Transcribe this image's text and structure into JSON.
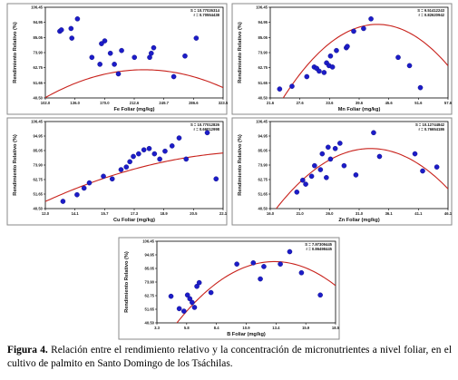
{
  "caption": {
    "label": "Figura 4.",
    "text": "Relación entre el rendimiento relativo y la concentración de micronutrientes a nivel foliar, en el cultivo de palmito en Santo Domingo de los Tsáchilas."
  },
  "chart_data": [
    {
      "type": "scatter",
      "xlabel": "Fe Foliar (mg/kg)",
      "ylabel": "Rendimiento Relativo (%)",
      "xticks": [
        "102.0",
        "136.0",
        "170.0",
        "212.6",
        "249.7",
        "286.6",
        "323.5"
      ],
      "yticks": [
        "40.50",
        "51.65",
        "62.75",
        "73.90",
        "85.05",
        "94.95",
        "106.45"
      ],
      "xlim": [
        102.0,
        323.5
      ],
      "ylim": [
        40.5,
        106.45
      ],
      "stats": [
        "S = 10.77026314",
        "r = 0.70554438"
      ],
      "points": [
        [
          120,
          89
        ],
        [
          122,
          90
        ],
        [
          134,
          91
        ],
        [
          135,
          84
        ],
        [
          142,
          98
        ],
        [
          160,
          70
        ],
        [
          170,
          65
        ],
        [
          172,
          80
        ],
        [
          176,
          82
        ],
        [
          183,
          73
        ],
        [
          188,
          65
        ],
        [
          193,
          58
        ],
        [
          197,
          75
        ],
        [
          213,
          70
        ],
        [
          232,
          70
        ],
        [
          234,
          73
        ],
        [
          237,
          77
        ],
        [
          262,
          56
        ],
        [
          276,
          71
        ],
        [
          290,
          84
        ]
      ],
      "curve": {
        "kind": "quadratic",
        "vertex_x": 225,
        "vertex_y": 61,
        "a": 0.00134
      }
    },
    {
      "type": "scatter",
      "xlabel": "Mn Foliar (mg/kg)",
      "ylabel": "Rendimiento Relativo (%)",
      "xticks": [
        "21.6",
        "27.6",
        "33.6",
        "39.6",
        "45.6",
        "51.6",
        "57.6"
      ],
      "yticks": [
        "40.50",
        "51.65",
        "62.75",
        "73.90",
        "85.05",
        "94.95",
        "106.45"
      ],
      "xlim": [
        21.6,
        57.6
      ],
      "ylim": [
        40.5,
        106.45
      ],
      "stats": [
        "S = 9.51412243",
        "r = 0.82620942"
      ],
      "points": [
        [
          23.5,
          47
        ],
        [
          26.0,
          49
        ],
        [
          29.0,
          56
        ],
        [
          30.5,
          63
        ],
        [
          31.0,
          62
        ],
        [
          31.5,
          60
        ],
        [
          32.5,
          59
        ],
        [
          33.0,
          66
        ],
        [
          33.5,
          64
        ],
        [
          33.8,
          71
        ],
        [
          34.2,
          63
        ],
        [
          35.0,
          75
        ],
        [
          37.0,
          77
        ],
        [
          37.2,
          78
        ],
        [
          38.5,
          89
        ],
        [
          40.5,
          91
        ],
        [
          42.0,
          98
        ],
        [
          47.5,
          70
        ],
        [
          49.8,
          64
        ],
        [
          52.0,
          48
        ]
      ],
      "curve": {
        "kind": "quadratic",
        "vertex_x": 43.3,
        "vertex_y": 94,
        "a": 0.147
      }
    },
    {
      "type": "scatter",
      "xlabel": "Cu Foliar (mg/kg)",
      "ylabel": "Rendimiento Relativo (%)",
      "xticks": [
        "12.0",
        "14.1",
        "15.7",
        "17.3",
        "18.9",
        "20.5",
        "22.1"
      ],
      "yticks": [
        "40.50",
        "51.65",
        "62.75",
        "73.90",
        "85.05",
        "94.95",
        "106.45"
      ],
      "xlim": [
        12.0,
        22.1
      ],
      "ylim": [
        40.5,
        106.45
      ],
      "stats": [
        "S = 10.77012826",
        "r = 0.66012998"
      ],
      "points": [
        [
          13.0,
          46
        ],
        [
          13.8,
          51
        ],
        [
          14.2,
          56
        ],
        [
          14.5,
          60
        ],
        [
          15.3,
          65
        ],
        [
          15.8,
          63
        ],
        [
          16.3,
          70
        ],
        [
          16.6,
          72
        ],
        [
          16.8,
          76
        ],
        [
          17.0,
          80
        ],
        [
          17.3,
          82
        ],
        [
          17.6,
          85
        ],
        [
          17.9,
          86
        ],
        [
          18.2,
          82
        ],
        [
          18.5,
          78
        ],
        [
          18.8,
          84
        ],
        [
          19.2,
          88
        ],
        [
          19.6,
          94
        ],
        [
          20.0,
          78
        ],
        [
          21.2,
          98
        ],
        [
          21.7,
          63
        ]
      ],
      "curve": {
        "kind": "quadratic",
        "vertex_x": 24.5,
        "vertex_y": 84,
        "a": 0.244
      }
    },
    {
      "type": "scatter",
      "xlabel": "Zn Foliar (mg/kg)",
      "ylabel": "Rendimiento Relativo (%)",
      "xticks": [
        "16.0",
        "21.0",
        "26.0",
        "31.0",
        "36.1",
        "41.1",
        "46.1"
      ],
      "yticks": [
        "40.50",
        "51.65",
        "62.75",
        "73.90",
        "85.05",
        "94.95",
        "106.45"
      ],
      "xlim": [
        16.0,
        46.1
      ],
      "ylim": [
        40.5,
        106.45
      ],
      "stats": [
        "S = 10.12744842",
        "r = 0.76654186"
      ],
      "points": [
        [
          20.5,
          53
        ],
        [
          21.5,
          62
        ],
        [
          22.0,
          59
        ],
        [
          23.0,
          65
        ],
        [
          23.5,
          73
        ],
        [
          24.5,
          70
        ],
        [
          24.8,
          82
        ],
        [
          25.5,
          64
        ],
        [
          25.8,
          87
        ],
        [
          26.2,
          78
        ],
        [
          27.0,
          86
        ],
        [
          27.8,
          90
        ],
        [
          28.5,
          73
        ],
        [
          30.5,
          66
        ],
        [
          33.5,
          98
        ],
        [
          34.5,
          80
        ],
        [
          40.5,
          82
        ],
        [
          41.8,
          69
        ],
        [
          44.2,
          72
        ]
      ],
      "curve": {
        "kind": "quadratic",
        "vertex_x": 33.0,
        "vertex_y": 86,
        "a": 0.178
      }
    },
    {
      "type": "scatter",
      "xlabel": "B Foliar (mg/kg)",
      "ylabel": "Rendimiento Relativo (%)",
      "xticks": [
        "3.3",
        "5.8",
        "8.4",
        "10.9",
        "13.4",
        "15.9",
        "18.5"
      ],
      "yticks": [
        "40.50",
        "51.65",
        "62.75",
        "73.90",
        "85.05",
        "94.95",
        "106.45"
      ],
      "xlim": [
        3.3,
        18.5
      ],
      "ylim": [
        40.5,
        106.45
      ],
      "stats": [
        "S = 7.97309445",
        "r = 0.86498445"
      ],
      "points": [
        [
          4.5,
          62
        ],
        [
          5.2,
          52
        ],
        [
          5.6,
          50
        ],
        [
          5.9,
          63
        ],
        [
          6.1,
          60
        ],
        [
          6.3,
          57
        ],
        [
          6.5,
          53
        ],
        [
          6.7,
          70
        ],
        [
          6.9,
          73
        ],
        [
          7.9,
          65
        ],
        [
          10.1,
          88
        ],
        [
          11.5,
          89
        ],
        [
          12.1,
          76
        ],
        [
          12.4,
          86
        ],
        [
          13.8,
          88
        ],
        [
          14.6,
          98
        ],
        [
          15.6,
          81
        ],
        [
          17.2,
          63
        ]
      ],
      "curve": {
        "kind": "quadratic",
        "vertex_x": 13.3,
        "vertex_y": 90,
        "a": 0.719
      }
    }
  ]
}
